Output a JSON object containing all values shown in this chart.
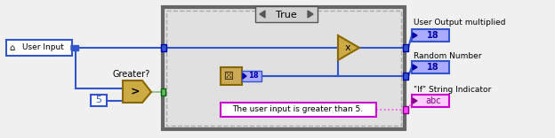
{
  "bg_color": "#f0f0f0",
  "blue": "#3355cc",
  "dark_blue": "#0000aa",
  "indicator_fill": "#aaaaff",
  "green_wire": "#88bb88",
  "pink_wire": "#ff44ff",
  "gold_fill": "#ccaa44",
  "gold_dark": "#886600",
  "case_bg": "#e0e0e0",
  "case_border": "#666666",
  "true_label": "True",
  "user_input_label": "User Input",
  "greater_label": "Greater?",
  "const_5": "5",
  "random_val": "18",
  "multiply_symbol": "x",
  "string_text": "The user input is greater than 5.",
  "out1_label": "User Output multiplied",
  "out2_label": "Random Number",
  "out3_label": "\"If\" String Indicator",
  "out1_val": "18",
  "out2_val": "18",
  "out3_val": "abc"
}
